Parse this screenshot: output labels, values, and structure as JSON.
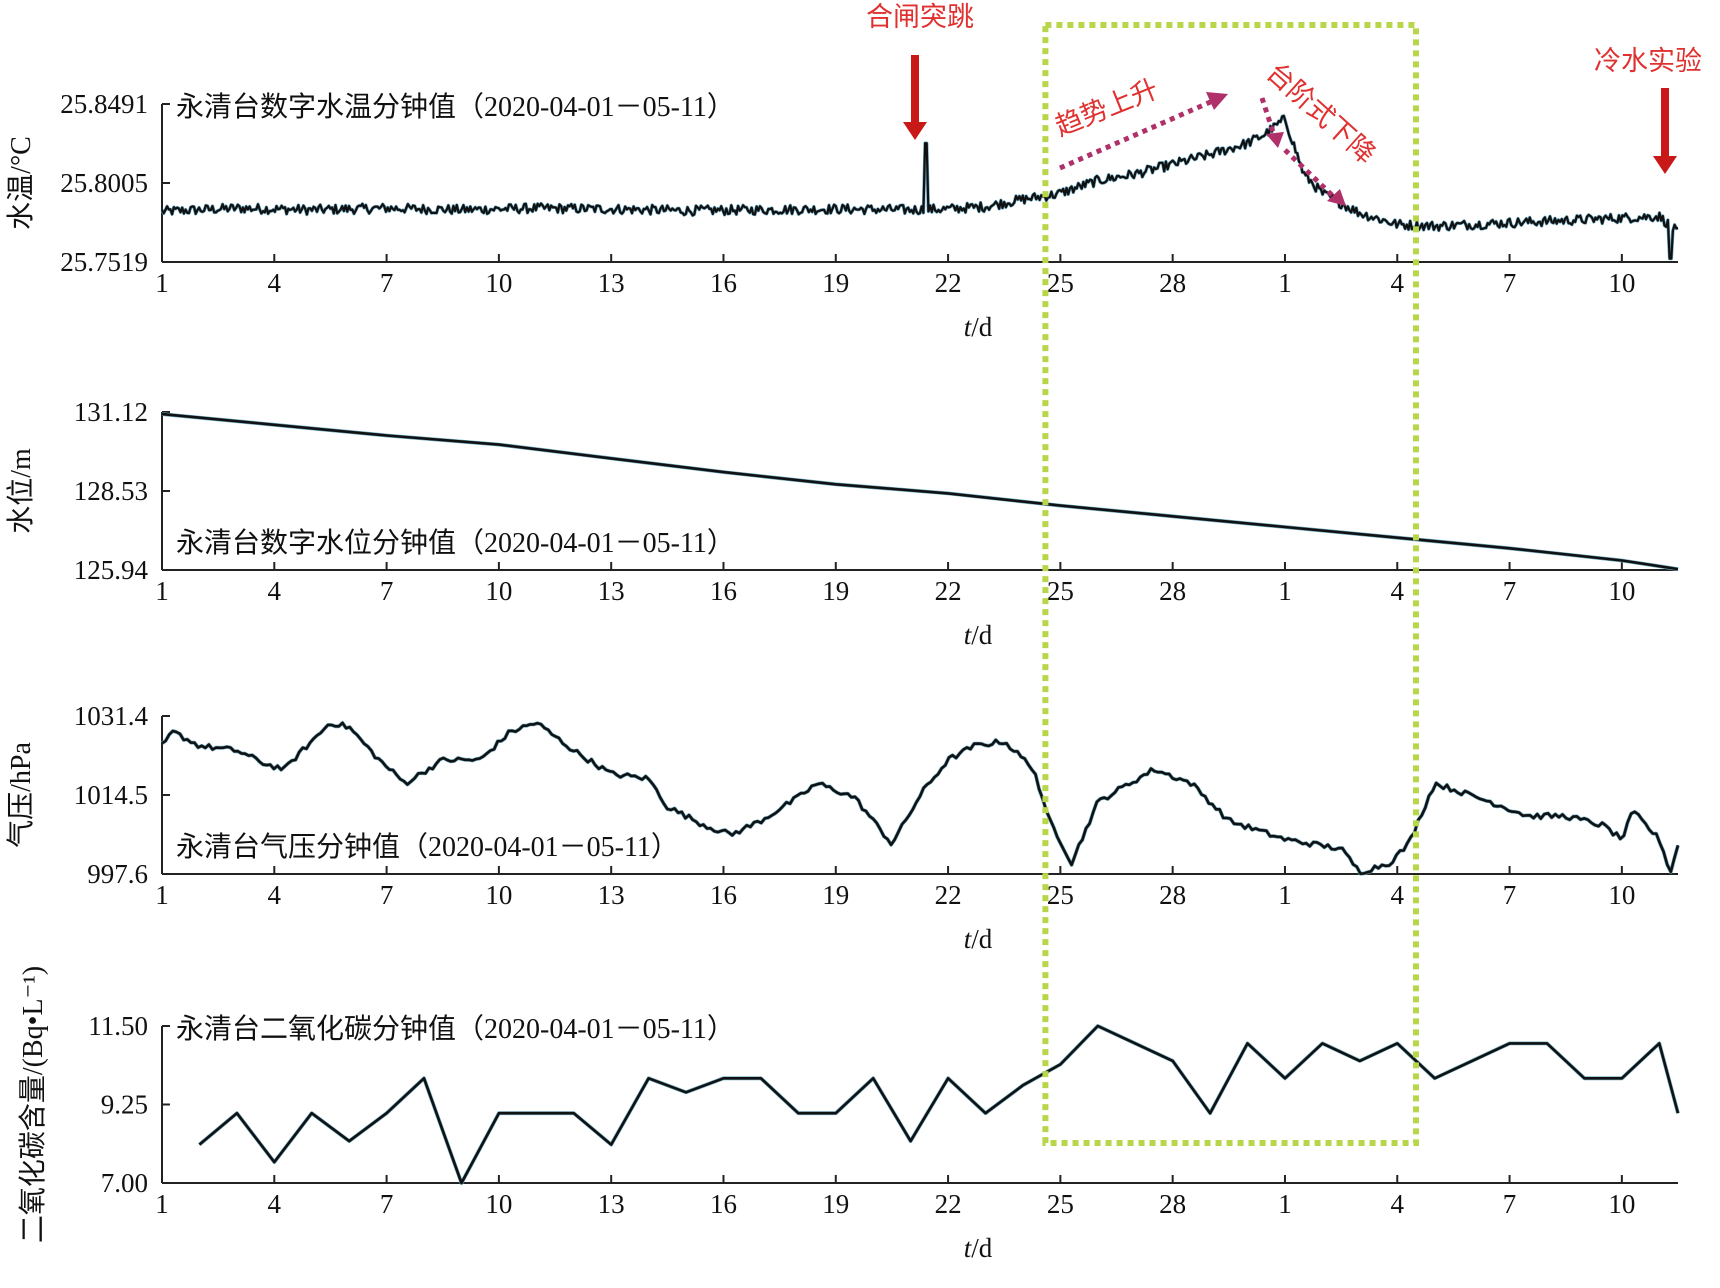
{
  "x_ticks": [
    "1",
    "4",
    "7",
    "10",
    "13",
    "16",
    "19",
    "22",
    "25",
    "28",
    "1",
    "4",
    "7",
    "10"
  ],
  "xlabel_t": "t",
  "xlabel_unit": "/d",
  "colors": {
    "line": "#111111",
    "line_shadow": "#6aa8c0",
    "highlight_box": "#b8d64a",
    "annotation": "#e03030"
  },
  "annotations": {
    "gate_jump": "合闸突跳",
    "trend_rise": "趋势上升",
    "step_drop": "台阶式下降",
    "cold_water": "冷水实验"
  },
  "chart_data": [
    {
      "type": "line",
      "title": "永清台数字水温分钟值（2020-04-01－05-11）",
      "ylabel": "水温/°C",
      "yticks": [
        "25.8491",
        "25.8005",
        "25.7519"
      ],
      "ylim": [
        25.7519,
        25.8491
      ],
      "xlim": [
        1,
        41.5
      ],
      "x": [
        1,
        3,
        5,
        7,
        9,
        11,
        13,
        15,
        17,
        19,
        21,
        22,
        23,
        24,
        24.9,
        26,
        27,
        28,
        29,
        30,
        30.5,
        31,
        31.5,
        32,
        33,
        34,
        35,
        37,
        39,
        41,
        41.5
      ],
      "values": [
        25.783,
        25.785,
        25.784,
        25.785,
        25.784,
        25.785,
        25.7845,
        25.7835,
        25.784,
        25.7845,
        25.784,
        25.7845,
        25.786,
        25.7905,
        25.7935,
        25.802,
        25.806,
        25.812,
        25.818,
        25.825,
        25.831,
        25.84,
        25.806,
        25.794,
        25.782,
        25.775,
        25.774,
        25.776,
        25.778,
        25.78,
        25.77
      ],
      "noise_amplitude": 0.003,
      "spike": {
        "x": 21.4,
        "value": 25.825
      },
      "dip": {
        "x": 41.3,
        "value": 25.754
      }
    },
    {
      "type": "line",
      "title": "永清台数字水位分钟值（2020-04-01－05-11）",
      "ylabel": "水位/m",
      "yticks": [
        "131.12",
        "128.53",
        "125.94"
      ],
      "ylim": [
        125.94,
        131.12
      ],
      "xlim": [
        1,
        41.5
      ],
      "x": [
        1,
        4,
        7,
        10,
        13,
        16,
        19,
        22,
        25,
        28,
        31,
        34,
        37,
        40,
        41.5
      ],
      "values": [
        131.05,
        130.7,
        130.35,
        130.05,
        129.6,
        129.15,
        128.75,
        128.45,
        128.05,
        127.7,
        127.35,
        127.0,
        126.65,
        126.25,
        125.97
      ]
    },
    {
      "type": "line",
      "title": "永清台气压分钟值（2020-04-01－05-11）",
      "ylabel": "气压/hPa",
      "yticks": [
        "1031.4",
        "1014.5",
        "997.6"
      ],
      "ylim": [
        997.6,
        1031.4
      ],
      "xlim": [
        1,
        41.5
      ],
      "x": [
        1,
        1.3,
        2,
        3,
        3.8,
        4.3,
        4.5,
        5.5,
        6,
        6.8,
        7.5,
        8.5,
        9.5,
        10.3,
        11,
        12,
        13,
        14,
        14.5,
        15.5,
        16.2,
        17,
        18,
        18.5,
        19.5,
        20.5,
        21.3,
        22,
        22.7,
        23.5,
        24.3,
        24.6,
        25.3,
        26,
        27.5,
        28.5,
        29.5,
        31,
        32.5,
        33,
        33.8,
        34.3,
        35,
        36.5,
        37.5,
        38.5,
        39.5,
        40,
        40.3,
        41,
        41.3,
        41.5
      ],
      "values": [
        1025,
        1028,
        1025,
        1024,
        1021,
        1020,
        1022,
        1030,
        1029,
        1022,
        1017,
        1022,
        1022,
        1028,
        1030,
        1024,
        1019,
        1018,
        1012,
        1008,
        1006,
        1009,
        1014,
        1017,
        1014,
        1004,
        1015,
        1022,
        1025,
        1026,
        1020,
        1011,
        1000,
        1013,
        1020,
        1017,
        1009,
        1005,
        1003,
        998,
        1000,
        1004,
        1017,
        1013,
        1010,
        1010,
        1008,
        1005,
        1011,
        1005,
        997.9,
        1004
      ],
      "noise_amplitude": 0.6
    },
    {
      "type": "line",
      "title": "永清台二氧化碳分钟值（2020-04-01－05-11）",
      "ylabel": "二氧化碳含量/(Bq•L⁻¹)",
      "yticks": [
        "11.50",
        "9.25",
        "7.00"
      ],
      "ylim": [
        7.0,
        11.5
      ],
      "xlim": [
        1,
        41.5
      ],
      "x": [
        2,
        3,
        4,
        5,
        6,
        7,
        8,
        9,
        10,
        11,
        12,
        13,
        14,
        15,
        16,
        17,
        18,
        19,
        20,
        21,
        22,
        23,
        24,
        25,
        26,
        27,
        28,
        29,
        30,
        31,
        32,
        33,
        34,
        35,
        36,
        37,
        38,
        39,
        40,
        41,
        41.5
      ],
      "values": [
        8.1,
        9.0,
        7.6,
        9.0,
        8.2,
        9.0,
        10.0,
        7.0,
        9.0,
        9.0,
        9.0,
        8.1,
        10.0,
        9.6,
        10.0,
        10.0,
        9.0,
        9.0,
        10.0,
        8.2,
        10.0,
        9.0,
        9.8,
        10.4,
        11.5,
        11.0,
        10.5,
        9.0,
        11.0,
        10.0,
        11.0,
        10.5,
        11.0,
        10.0,
        10.5,
        11.0,
        11.0,
        10.0,
        10.0,
        11.0,
        9.0
      ]
    }
  ]
}
